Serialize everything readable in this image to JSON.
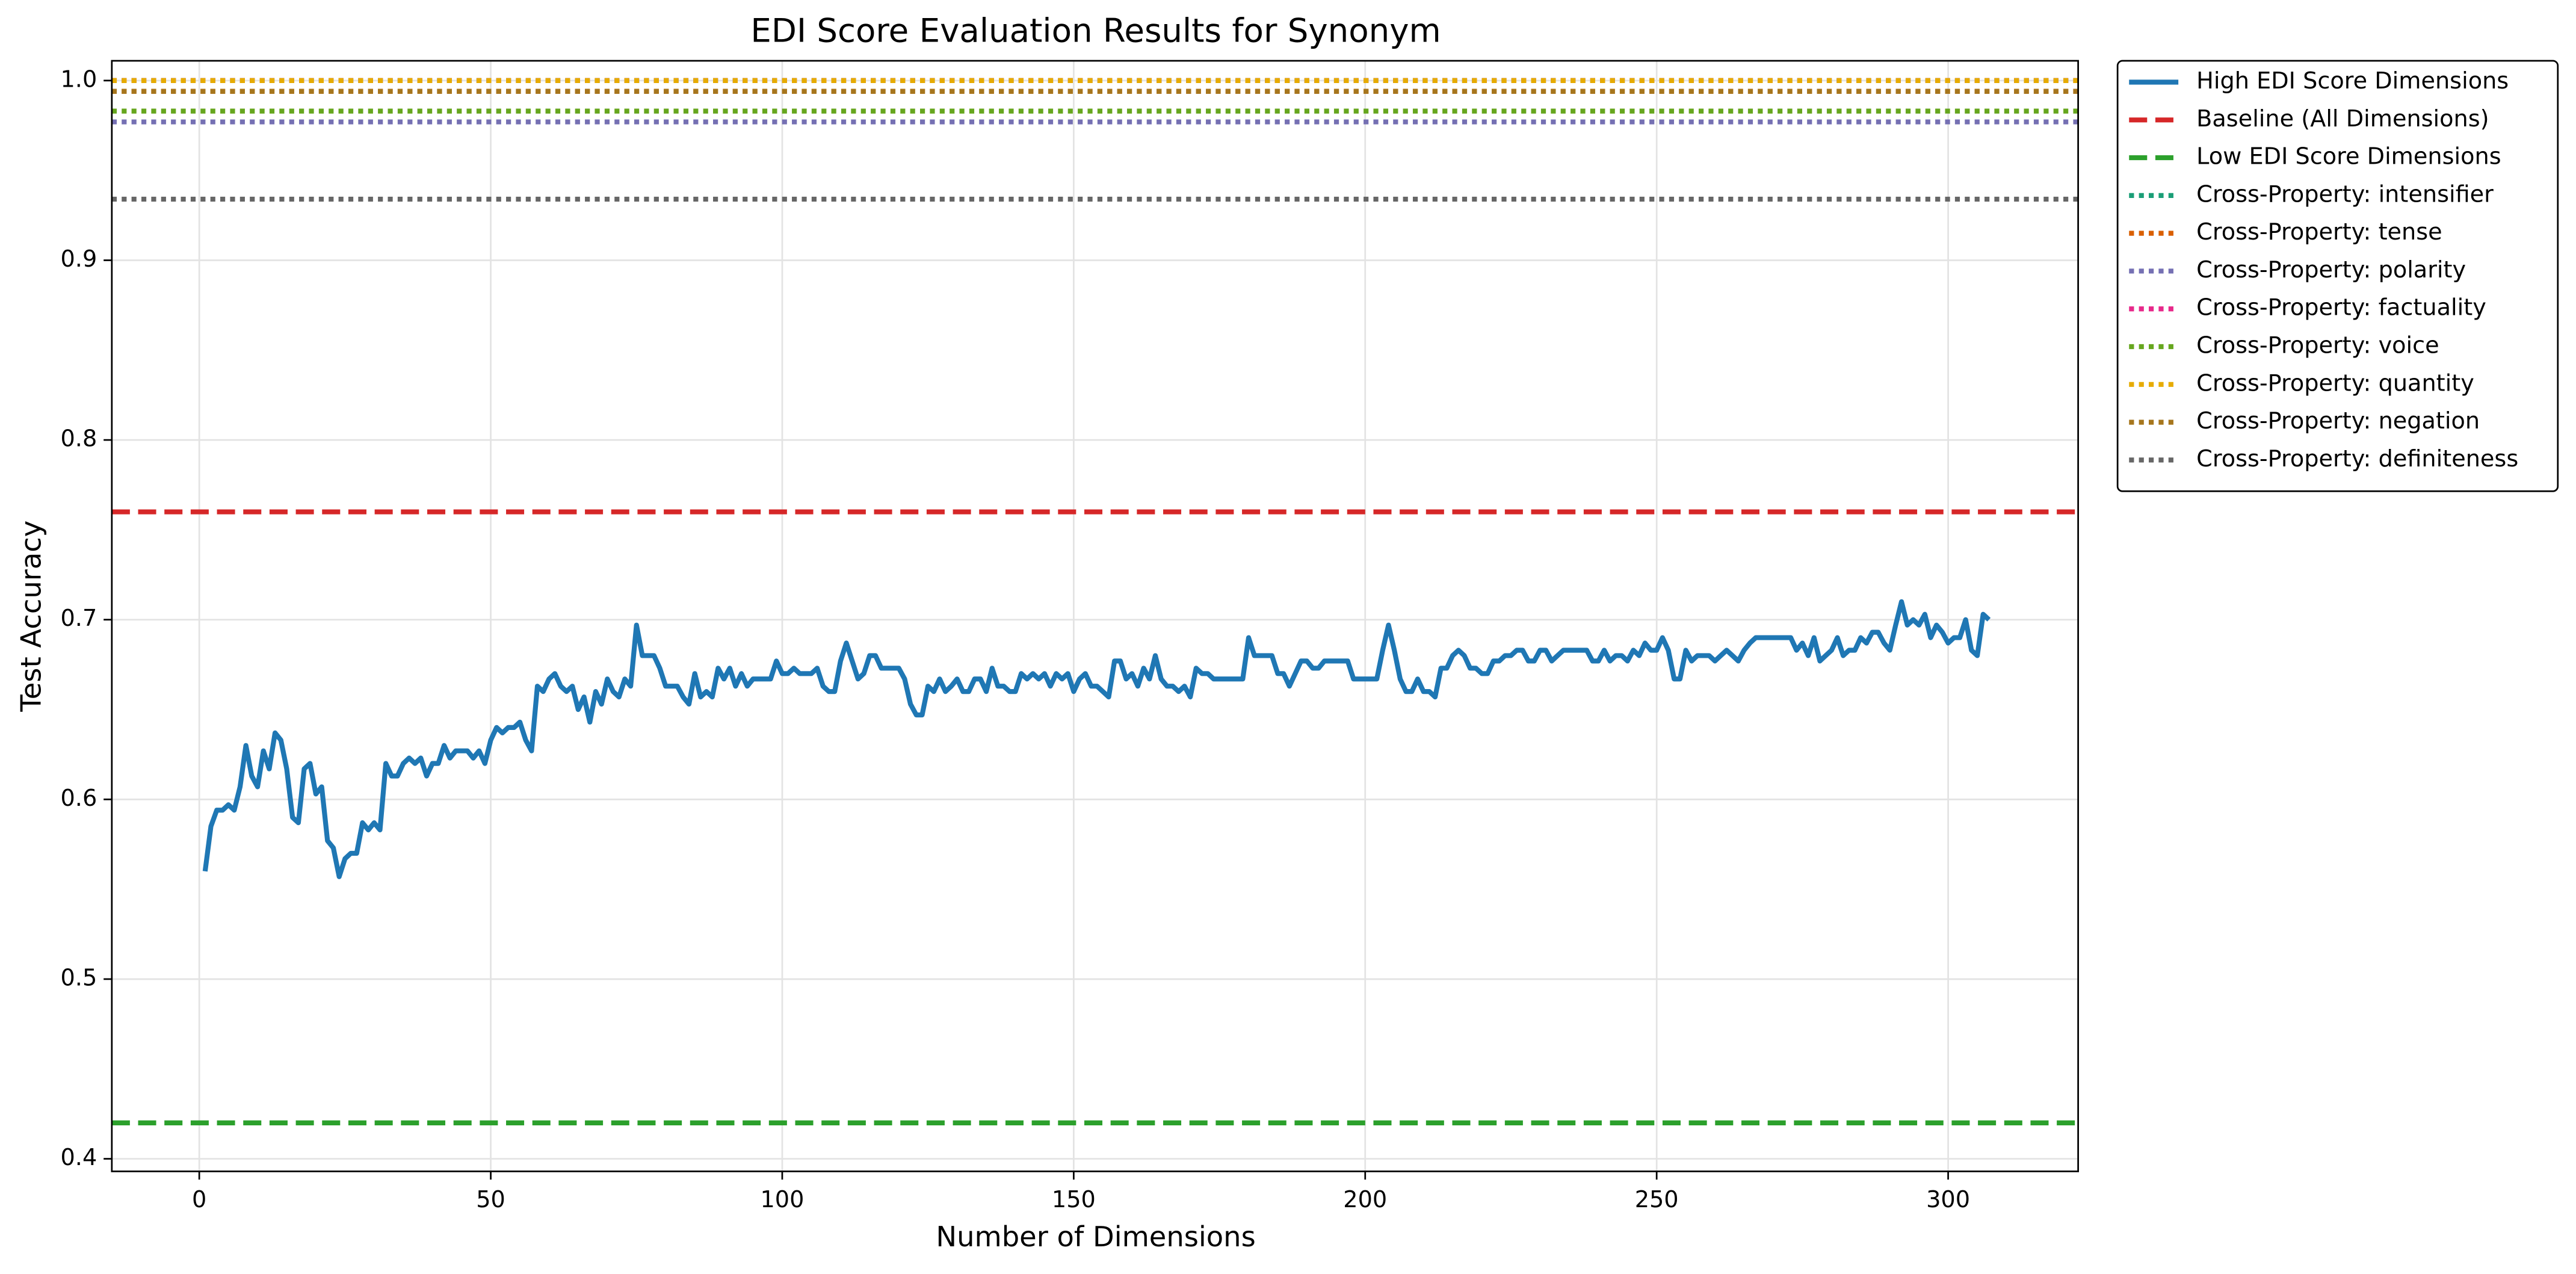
{
  "chart_data": {
    "type": "line",
    "title": "EDI Score Evaluation Results for Synonym",
    "xlabel": "Number of Dimensions",
    "ylabel": "Test Accuracy",
    "xlim": [
      -15,
      322.3
    ],
    "xticks": [
      0,
      50,
      100,
      150,
      200,
      250,
      300
    ],
    "ylim": [
      0.393,
      1.011
    ],
    "yticks": [
      0.4,
      0.5,
      0.6,
      0.7,
      0.8,
      0.9,
      {
        "value": 1,
        "label": "1.0"
      }
    ],
    "grid": true,
    "legend": "outside upper right",
    "x": [
      1,
      2,
      3,
      4,
      5,
      6,
      7,
      8,
      9,
      10,
      11,
      12,
      13,
      14,
      15,
      16,
      17,
      18,
      19,
      20,
      21,
      22,
      23,
      24,
      25,
      26,
      27,
      28,
      29,
      30,
      31,
      32,
      33,
      34,
      35,
      36,
      37,
      38,
      39,
      40,
      41,
      42,
      43,
      44,
      45,
      46,
      47,
      48,
      49,
      50,
      51,
      52,
      53,
      54,
      55,
      56,
      57,
      58,
      59,
      60,
      61,
      62,
      63,
      64,
      65,
      66,
      67,
      68,
      69,
      70,
      71,
      72,
      73,
      74,
      75,
      76,
      77,
      78,
      79,
      80,
      81,
      82,
      83,
      84,
      85,
      86,
      87,
      88,
      89,
      90,
      91,
      92,
      93,
      94,
      95,
      96,
      97,
      98,
      99,
      100,
      101,
      102,
      103,
      104,
      105,
      106,
      107,
      108,
      109,
      110,
      111,
      112,
      113,
      114,
      115,
      116,
      117,
      118,
      119,
      120,
      121,
      122,
      123,
      124,
      125,
      126,
      127,
      128,
      129,
      130,
      131,
      132,
      133,
      134,
      135,
      136,
      137,
      138,
      139,
      140,
      141,
      142,
      143,
      144,
      145,
      146,
      147,
      148,
      149,
      150,
      151,
      152,
      153,
      154,
      155,
      156,
      157,
      158,
      159,
      160,
      161,
      162,
      163,
      164,
      165,
      166,
      167,
      168,
      169,
      170,
      171,
      172,
      173,
      174,
      175,
      176,
      177,
      178,
      179,
      180,
      181,
      182,
      183,
      184,
      185,
      186,
      187,
      188,
      189,
      190,
      191,
      192,
      193,
      194,
      195,
      196,
      197,
      198,
      199,
      200,
      201,
      202,
      203,
      204,
      205,
      206,
      207,
      208,
      209,
      210,
      211,
      212,
      213,
      214,
      215,
      216,
      217,
      218,
      219,
      220,
      221,
      222,
      223,
      224,
      225,
      226,
      227,
      228,
      229,
      230,
      231,
      232,
      233,
      234,
      235,
      236,
      237,
      238,
      239,
      240,
      241,
      242,
      243,
      244,
      245,
      246,
      247,
      248,
      249,
      250,
      251,
      252,
      253,
      254,
      255,
      256,
      257,
      258,
      259,
      260,
      261,
      262,
      263,
      264,
      265,
      266,
      267,
      268,
      269,
      270,
      271,
      272,
      273,
      274,
      275,
      276,
      277,
      278,
      279,
      280,
      281,
      282,
      283,
      284,
      285,
      286,
      287,
      288,
      289,
      290,
      291,
      292,
      293,
      294,
      295,
      296,
      297,
      298,
      299,
      300,
      301,
      302,
      303,
      304,
      305,
      306,
      307
    ],
    "series": [
      {
        "name": "High EDI Score Dimensions",
        "color": "#1f77b4",
        "style": "solid",
        "values": [
          0.56,
          0.585,
          0.594,
          0.594,
          0.597,
          0.594,
          0.607,
          0.63,
          0.613,
          0.607,
          0.627,
          0.617,
          0.637,
          0.633,
          0.617,
          0.59,
          0.587,
          0.617,
          0.62,
          0.603,
          0.607,
          0.577,
          0.573,
          0.557,
          0.567,
          0.57,
          0.57,
          0.587,
          0.583,
          0.587,
          0.583,
          0.62,
          0.613,
          0.613,
          0.62,
          0.623,
          0.62,
          0.623,
          0.613,
          0.62,
          0.62,
          0.63,
          0.623,
          0.627,
          0.627,
          0.627,
          0.623,
          0.627,
          0.62,
          0.633,
          0.64,
          0.637,
          0.64,
          0.64,
          0.643,
          0.633,
          0.627,
          0.663,
          0.66,
          0.667,
          0.67,
          0.663,
          0.66,
          0.663,
          0.65,
          0.657,
          0.643,
          0.66,
          0.653,
          0.667,
          0.66,
          0.657,
          0.667,
          0.663,
          0.697,
          0.68,
          0.68,
          0.68,
          0.673,
          0.663,
          0.663,
          0.663,
          0.657,
          0.653,
          0.67,
          0.657,
          0.66,
          0.657,
          0.673,
          0.667,
          0.673,
          0.663,
          0.67,
          0.663,
          0.667,
          0.667,
          0.667,
          0.667,
          0.677,
          0.67,
          0.67,
          0.673,
          0.67,
          0.67,
          0.67,
          0.673,
          0.663,
          0.66,
          0.66,
          0.677,
          0.687,
          0.677,
          0.667,
          0.67,
          0.68,
          0.68,
          0.673,
          0.673,
          0.673,
          0.673,
          0.667,
          0.653,
          0.647,
          0.647,
          0.663,
          0.66,
          0.667,
          0.66,
          0.663,
          0.667,
          0.66,
          0.66,
          0.667,
          0.667,
          0.66,
          0.673,
          0.663,
          0.663,
          0.66,
          0.66,
          0.67,
          0.667,
          0.67,
          0.667,
          0.67,
          0.663,
          0.67,
          0.667,
          0.67,
          0.66,
          0.667,
          0.67,
          0.663,
          0.663,
          0.66,
          0.657,
          0.677,
          0.677,
          0.667,
          0.67,
          0.663,
          0.673,
          0.667,
          0.68,
          0.667,
          0.663,
          0.663,
          0.66,
          0.663,
          0.657,
          0.673,
          0.67,
          0.67,
          0.667,
          0.667,
          0.667,
          0.667,
          0.667,
          0.667,
          0.69,
          0.68,
          0.68,
          0.68,
          0.68,
          0.67,
          0.67,
          0.663,
          0.67,
          0.677,
          0.677,
          0.673,
          0.673,
          0.677,
          0.677,
          0.677,
          0.677,
          0.677,
          0.667,
          0.667,
          0.667,
          0.667,
          0.667,
          0.683,
          0.697,
          0.683,
          0.667,
          0.66,
          0.66,
          0.667,
          0.66,
          0.66,
          0.657,
          0.673,
          0.673,
          0.68,
          0.683,
          0.68,
          0.673,
          0.673,
          0.67,
          0.67,
          0.677,
          0.677,
          0.68,
          0.68,
          0.683,
          0.683,
          0.677,
          0.677,
          0.683,
          0.683,
          0.677,
          0.68,
          0.683,
          0.683,
          0.683,
          0.683,
          0.683,
          0.677,
          0.677,
          0.683,
          0.677,
          0.68,
          0.68,
          0.677,
          0.683,
          0.68,
          0.687,
          0.683,
          0.683,
          0.69,
          0.683,
          0.667,
          0.667,
          0.683,
          0.677,
          0.68,
          0.68,
          0.68,
          0.677,
          0.68,
          0.683,
          0.68,
          0.677,
          0.683,
          0.687,
          0.69,
          0.69,
          0.69,
          0.69,
          0.69,
          0.69,
          0.69,
          0.683,
          0.687,
          0.68,
          0.69,
          0.677,
          0.68,
          0.683,
          0.69,
          0.68,
          0.683,
          0.683,
          0.69,
          0.687,
          0.693,
          0.693,
          0.687,
          0.683,
          0.697,
          0.71,
          0.697,
          0.7,
          0.697,
          0.703,
          0.69,
          0.697,
          0.693,
          0.687,
          0.69,
          0.69,
          0.7,
          0.683,
          0.68,
          0.703,
          0.7
        ]
      }
    ],
    "reference_lines": [
      {
        "name": "Baseline (All Dimensions)",
        "color": "#d62728",
        "style": "dashed",
        "value": 0.76
      },
      {
        "name": "Low EDI Score Dimensions",
        "color": "#2ca02c",
        "style": "dashed",
        "value": 0.42
      },
      {
        "name": "Cross-Property: intensifier",
        "color": "#1b9e77",
        "style": "dotted",
        "value": 1.0
      },
      {
        "name": "Cross-Property: tense",
        "color": "#d95f02",
        "style": "dotted",
        "value": 0.994
      },
      {
        "name": "Cross-Property: polarity",
        "color": "#7570b3",
        "style": "dotted",
        "value": 0.977
      },
      {
        "name": "Cross-Property: factuality",
        "color": "#e7298a",
        "style": "dotted",
        "value": 1.0
      },
      {
        "name": "Cross-Property: voice",
        "color": "#66a61e",
        "style": "dotted",
        "value": 0.983
      },
      {
        "name": "Cross-Property: quantity",
        "color": "#e6ab02",
        "style": "dotted",
        "value": 1.0
      },
      {
        "name": "Cross-Property: negation",
        "color": "#a6761d",
        "style": "dotted",
        "value": 0.994
      },
      {
        "name": "Cross-Property: definiteness",
        "color": "#666666",
        "style": "dotted",
        "value": 0.934
      }
    ]
  }
}
